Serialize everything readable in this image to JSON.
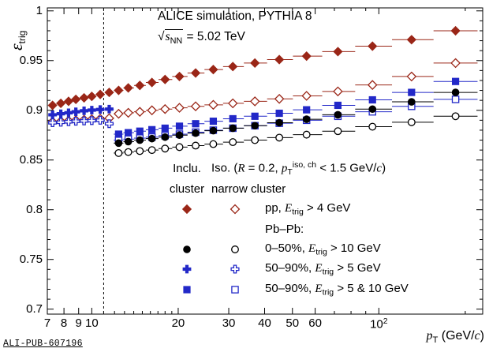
{
  "page": {
    "footer": "ALI-PUB-607196"
  },
  "header": {
    "line1": "ALICE simulation, PYTHIA 8",
    "line2_html": "√<span class='rad'><i>s</i><sub>NN</sub></span> = 5.02 TeV"
  },
  "axes": {
    "x_label_html": "<i>p</i><sub>T</sub> (GeV/<i>c</i>)",
    "y_label_html": "<i class='eps'>ε</i><sub class='ysub'>trig</sub>",
    "xlim": [
      7,
      230
    ],
    "ylim": [
      0.695,
      1.003
    ],
    "x_major": [
      [
        7,
        "7"
      ],
      [
        8,
        "8"
      ],
      [
        9,
        "9"
      ],
      [
        10,
        "10"
      ],
      [
        20,
        "20"
      ],
      [
        30,
        "30"
      ],
      [
        40,
        "40"
      ],
      [
        50,
        "50"
      ],
      [
        60,
        "60"
      ],
      [
        100,
        "10<sup>2</sup>"
      ]
    ],
    "x_minor": [
      11,
      12,
      13,
      14,
      15,
      16,
      17,
      18,
      19,
      70,
      80,
      90,
      200
    ],
    "y_major": [
      [
        0.7,
        "0.7"
      ],
      [
        0.75,
        "0.75"
      ],
      [
        0.8,
        "0.8"
      ],
      [
        0.85,
        "0.85"
      ],
      [
        0.9,
        "0.9"
      ],
      [
        0.95,
        "0.95"
      ],
      [
        1,
        "1"
      ]
    ],
    "dashed_line_x": 11
  },
  "chart_data": {
    "type": "scatter",
    "title": "ALICE simulation, PYTHIA 8, sqrt(s_NN) = 5.02 TeV",
    "xlabel": "p_T (GeV/c)",
    "ylabel": "epsilon_trig",
    "x_scale": "log",
    "xlim": [
      7,
      230
    ],
    "ylim": [
      0.695,
      1.003
    ],
    "grid": false,
    "legend_position": "inside lower-center",
    "series": [
      {
        "id": "pp-incl-cluster",
        "name": "pp, Etrig > 4 GeV (Inclu. cluster)",
        "marker": "diamond",
        "filled": true,
        "color": "#9a2617",
        "points": [
          [
            7.3,
            0.905
          ],
          [
            7.8,
            0.907
          ],
          [
            8.3,
            0.909
          ],
          [
            8.8,
            0.911
          ],
          [
            9.4,
            0.9125
          ],
          [
            10.0,
            0.914
          ],
          [
            10.7,
            0.916
          ],
          [
            11.5,
            0.918
          ],
          [
            12.4,
            0.92
          ],
          [
            13.4,
            0.9225
          ],
          [
            14.7,
            0.925
          ],
          [
            16.2,
            0.928
          ],
          [
            18.0,
            0.931
          ],
          [
            20.2,
            0.934
          ],
          [
            23,
            0.9375
          ],
          [
            26.5,
            0.941
          ],
          [
            31,
            0.944
          ],
          [
            37,
            0.9475
          ],
          [
            45,
            0.951
          ],
          [
            56,
            0.9545
          ],
          [
            72,
            0.959
          ],
          [
            95,
            0.9645
          ],
          [
            130,
            0.971
          ],
          [
            185,
            0.98
          ]
        ]
      },
      {
        "id": "pp-iso-narrow-cluster",
        "name": "pp, Etrig > 4 GeV (Iso. narrow cluster)",
        "marker": "diamond",
        "filled": false,
        "color": "#9a2617",
        "points": [
          [
            7.3,
            0.8885
          ],
          [
            7.8,
            0.889
          ],
          [
            8.3,
            0.8895
          ],
          [
            8.8,
            0.89
          ],
          [
            9.4,
            0.8905
          ],
          [
            10.0,
            0.891
          ],
          [
            10.7,
            0.8915
          ],
          [
            11.5,
            0.892
          ],
          [
            12.4,
            0.8965
          ],
          [
            13.4,
            0.8975
          ],
          [
            14.7,
            0.8985
          ],
          [
            16.2,
            0.9
          ],
          [
            18.0,
            0.9012
          ],
          [
            20.2,
            0.9025
          ],
          [
            23,
            0.904
          ],
          [
            26.5,
            0.9055
          ],
          [
            31,
            0.907
          ],
          [
            37,
            0.909
          ],
          [
            45,
            0.9115
          ],
          [
            56,
            0.9145
          ],
          [
            72,
            0.919
          ],
          [
            95,
            0.9255
          ],
          [
            130,
            0.934
          ],
          [
            185,
            0.9475
          ]
        ]
      },
      {
        "id": "pbpb-50-90-e5-incl",
        "name": "Pb–Pb 50–90%, Etrig > 5 GeV (Inclu. cluster)",
        "marker": "cross",
        "filled": true,
        "color": "#2228c8",
        "points": [
          [
            7.3,
            0.8955
          ],
          [
            7.8,
            0.8965
          ],
          [
            8.3,
            0.8975
          ],
          [
            8.8,
            0.8985
          ],
          [
            9.4,
            0.8995
          ],
          [
            10.0,
            0.9002
          ],
          [
            10.7,
            0.9008
          ],
          [
            11.5,
            0.9012
          ]
        ]
      },
      {
        "id": "pbpb-50-90-e5-iso",
        "name": "Pb–Pb 50–90%, Etrig > 5 GeV (Iso. narrow cluster)",
        "marker": "cross",
        "filled": false,
        "color": "#2228c8",
        "points": [
          [
            7.3,
            0.8875
          ],
          [
            7.8,
            0.888
          ],
          [
            8.3,
            0.8885
          ],
          [
            8.8,
            0.889
          ],
          [
            9.4,
            0.8893
          ],
          [
            10.0,
            0.8896
          ],
          [
            10.7,
            0.89
          ],
          [
            11.5,
            0.8865
          ]
        ]
      },
      {
        "id": "pbpb-0-50-e10-incl",
        "name": "Pb–Pb 0–50%, Etrig > 10 GeV (Inclu. cluster)",
        "marker": "circle",
        "filled": true,
        "color": "#000000",
        "points": [
          [
            12.4,
            0.867
          ],
          [
            13.4,
            0.8685
          ],
          [
            14.7,
            0.87
          ],
          [
            16.2,
            0.8715
          ],
          [
            18.0,
            0.873
          ],
          [
            20.2,
            0.875
          ],
          [
            23,
            0.877
          ],
          [
            26.5,
            0.8795
          ],
          [
            31,
            0.882
          ],
          [
            37,
            0.8845
          ],
          [
            45,
            0.8875
          ],
          [
            56,
            0.891
          ],
          [
            72,
            0.8955
          ],
          [
            95,
            0.9012
          ],
          [
            130,
            0.9085
          ],
          [
            185,
            0.918
          ]
        ]
      },
      {
        "id": "pbpb-0-50-e10-iso",
        "name": "Pb–Pb 0–50%, Etrig > 10 GeV (Iso. narrow cluster)",
        "marker": "circle",
        "filled": false,
        "color": "#000000",
        "points": [
          [
            12.4,
            0.857
          ],
          [
            13.4,
            0.858
          ],
          [
            14.7,
            0.859
          ],
          [
            16.2,
            0.86
          ],
          [
            18.0,
            0.8615
          ],
          [
            20.2,
            0.863
          ],
          [
            23,
            0.8645
          ],
          [
            26.5,
            0.866
          ],
          [
            31,
            0.868
          ],
          [
            37,
            0.87
          ],
          [
            45,
            0.8725
          ],
          [
            56,
            0.8755
          ],
          [
            72,
            0.879
          ],
          [
            95,
            0.8835
          ],
          [
            130,
            0.888
          ],
          [
            185,
            0.894
          ]
        ]
      },
      {
        "id": "pbpb-50-90-e5and10-incl",
        "name": "Pb–Pb 50–90%, Etrig > 5 & 10 GeV (Inclu. cluster)",
        "marker": "square",
        "filled": true,
        "color": "#2228c8",
        "points": [
          [
            12.4,
            0.876
          ],
          [
            13.4,
            0.8775
          ],
          [
            14.7,
            0.879
          ],
          [
            16.2,
            0.8805
          ],
          [
            18.0,
            0.882
          ],
          [
            20.2,
            0.884
          ],
          [
            23,
            0.8865
          ],
          [
            26.5,
            0.889
          ],
          [
            31,
            0.8915
          ],
          [
            37,
            0.894
          ],
          [
            45,
            0.897
          ],
          [
            56,
            0.9005
          ],
          [
            72,
            0.905
          ],
          [
            95,
            0.9105
          ],
          [
            130,
            0.918
          ],
          [
            185,
            0.929
          ]
        ]
      },
      {
        "id": "pbpb-50-90-e5and10-iso",
        "name": "Pb–Pb 50–90%, Etrig > 5 & 10 GeV (Iso. narrow cluster)",
        "marker": "square",
        "filled": false,
        "color": "#2228c8",
        "points": [
          [
            12.4,
            0.87
          ],
          [
            13.4,
            0.871
          ],
          [
            14.7,
            0.872
          ],
          [
            16.2,
            0.873
          ],
          [
            18.0,
            0.8745
          ],
          [
            20.2,
            0.876
          ],
          [
            23,
            0.878
          ],
          [
            26.5,
            0.88
          ],
          [
            31,
            0.882
          ],
          [
            37,
            0.8845
          ],
          [
            45,
            0.887
          ],
          [
            56,
            0.89
          ],
          [
            72,
            0.894
          ],
          [
            95,
            0.8985
          ],
          [
            130,
            0.904
          ],
          [
            185,
            0.911
          ]
        ]
      }
    ]
  },
  "legend": {
    "col1_header": [
      "Inclu.",
      "cluster"
    ],
    "col2_header_html": [
      "Iso. (<i>R</i> = 0.2, <i>p</i><sub>T</sub><sup>iso, ch</sup> &lt; 1.5 GeV/<i>c</i>)",
      "narrow cluster"
    ],
    "rows": [
      {
        "m1": 0,
        "m2": 1,
        "label_html": "pp, <i>E</i><sub>trig</sub> &gt; 4 GeV"
      },
      {
        "label_html": "Pb–Pb:"
      },
      {
        "m1": 4,
        "m2": 5,
        "label_html": "0–50%, <i>E</i><sub>trig</sub> &gt; 10 GeV"
      },
      {
        "m1": 2,
        "m2": 3,
        "label_html": "50–90%, <i>E</i><sub>trig</sub> &gt; 5 GeV"
      },
      {
        "m1": 6,
        "m2": 7,
        "label_html": "50–90%, <i>E</i><sub>trig</sub> &gt; 5 &amp; 10 GeV"
      }
    ]
  },
  "colors": {
    "pp_red": "#9a2617",
    "pbpb_blue": "#2228c8",
    "black": "#000000"
  }
}
